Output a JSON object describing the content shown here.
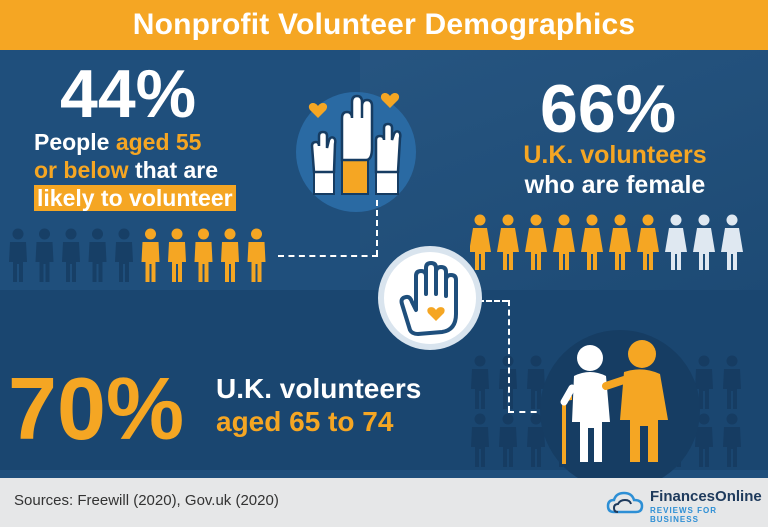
{
  "title": "Nonprofit Volunteer Demographics",
  "stat_44": {
    "number": "44%",
    "line1_a": "People ",
    "line1_b": "aged 55",
    "line2_a": "or below",
    "line2_b": " that are",
    "line3": "likely to volunteer",
    "people_total": 10,
    "people_highlighted": 4.4
  },
  "stat_66": {
    "number": "66%",
    "line1": "U.K. volunteers",
    "line2": "who are female",
    "people_total": 10,
    "people_highlighted": 6.6
  },
  "stat_70": {
    "number": "70%",
    "line1": "U.K. volunteers",
    "line2": "aged 65 to 74"
  },
  "footer": {
    "sources": "Sources: Freewill (2020), Gov.uk (2020)",
    "brand_name": "FinancesOnline",
    "brand_tagline": "REVIEWS FOR BUSINESS"
  },
  "colors": {
    "background": "#1f4f7c",
    "accent": "#f5a623",
    "dark_figure": "#173f66",
    "light_figure": "#dfe8f1"
  },
  "icons": [
    "raised-hands-icon",
    "heart-hand-icon",
    "elderly-couple-icon",
    "cloud-logo-icon"
  ]
}
